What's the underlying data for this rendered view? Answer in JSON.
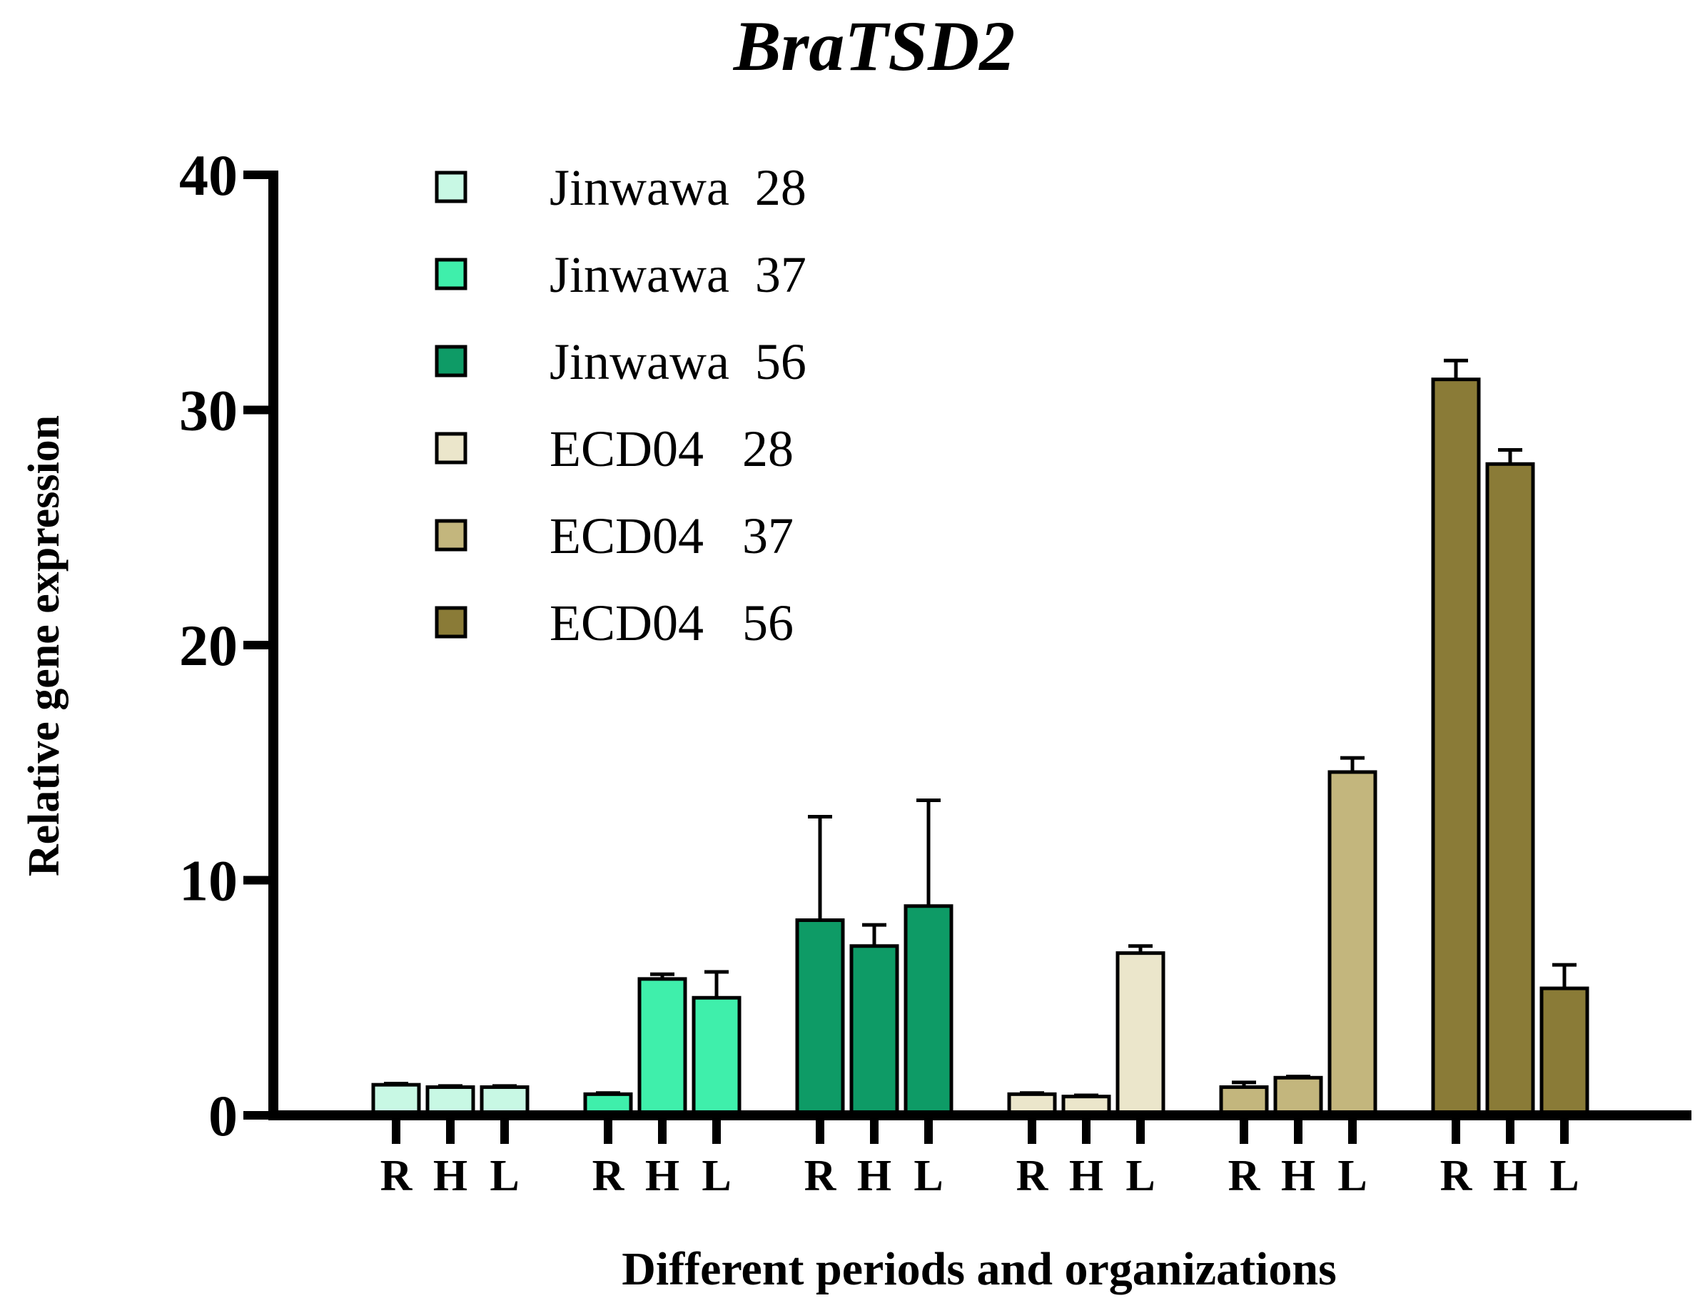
{
  "chart_data": {
    "type": "bar",
    "title": "BraTSD2",
    "xlabel": "Different periods and organizations",
    "ylabel": "Relative gene expression",
    "ylim": [
      0,
      40
    ],
    "yticks": [
      0,
      10,
      20,
      30,
      40
    ],
    "grid": false,
    "legend_position": "top-left",
    "categories": [
      "R",
      "H",
      "L"
    ],
    "series": [
      {
        "name": "Jinwawa  28",
        "color": "#c8f8e4",
        "values": [
          1.3,
          1.2,
          1.2
        ],
        "errors": [
          0.05,
          0.05,
          0.05
        ]
      },
      {
        "name": "Jinwawa  37",
        "color": "#3fefab",
        "values": [
          0.9,
          5.8,
          5.0
        ],
        "errors": [
          0.05,
          0.2,
          1.1
        ]
      },
      {
        "name": "Jinwawa  56",
        "color": "#0e9b66",
        "values": [
          8.3,
          7.2,
          8.9
        ],
        "errors": [
          4.4,
          0.9,
          4.5
        ]
      },
      {
        "name": "ECD04   28",
        "color": "#ebe6cb",
        "values": [
          0.9,
          0.8,
          6.9
        ],
        "errors": [
          0.05,
          0.05,
          0.3
        ]
      },
      {
        "name": "ECD04   37",
        "color": "#c3b67d",
        "values": [
          1.2,
          1.6,
          14.6
        ],
        "errors": [
          0.2,
          0.05,
          0.6
        ]
      },
      {
        "name": "ECD04   56",
        "color": "#8a7b37",
        "values": [
          31.3,
          27.7,
          5.4
        ],
        "errors": [
          0.8,
          0.6,
          1.0
        ]
      }
    ]
  }
}
